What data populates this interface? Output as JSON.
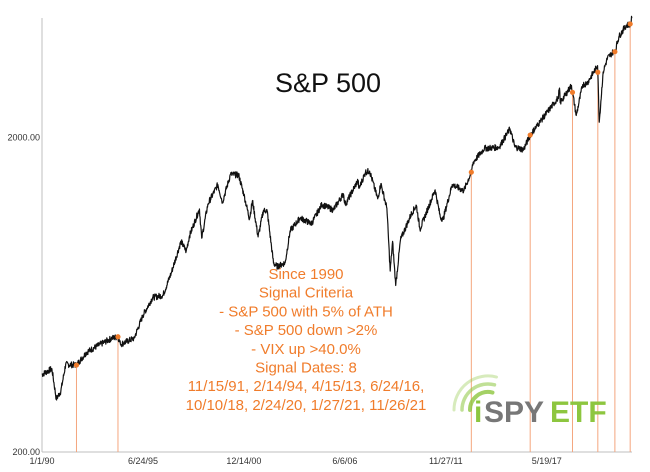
{
  "chart_data": {
    "type": "line",
    "title": "S&P 500",
    "xlabel": "",
    "ylabel": "",
    "scale": "log",
    "ylim": [
      200,
      4800
    ],
    "y_ticks": [
      {
        "value": 2000,
        "label": "2000.00"
      },
      {
        "value": 200,
        "label": "200.00"
      }
    ],
    "x_ticks": [
      "1/1/90",
      "6/24/95",
      "12/14/00",
      "6/6/06",
      "11/27/11",
      "5/19/17"
    ],
    "series": [
      {
        "x": [
          "1990-01-02",
          "1990-07-16",
          "1990-10-11",
          "1991-01-09",
          "1991-04-15",
          "1991-11-15",
          "1992-06-01",
          "1993-01-04",
          "1993-10-15",
          "1994-02-14",
          "1994-04-04",
          "1994-12-30",
          "1995-06-26",
          "1996-01-02",
          "1996-07-24",
          "1997-01-02",
          "1997-07-17",
          "1997-10-27",
          "1998-01-02",
          "1998-07-17",
          "1998-08-31",
          "1998-12-31",
          "1999-07-16",
          "1999-10-15",
          "2000-03-24",
          "2000-09-01",
          "2000-12-14",
          "2001-04-04",
          "2001-06-01",
          "2001-09-21",
          "2002-01-04",
          "2002-03-19",
          "2002-07-23",
          "2002-10-09",
          "2003-03-11",
          "2003-06-17",
          "2004-01-02",
          "2004-08-12",
          "2005-03-07",
          "2005-10-20",
          "2006-05-08",
          "2006-06-13",
          "2007-02-20",
          "2007-03-14",
          "2007-07-19",
          "2007-10-09",
          "2008-03-17",
          "2008-05-19",
          "2008-09-15",
          "2008-11-20",
          "2009-01-06",
          "2009-03-09",
          "2009-06-12",
          "2010-01-19",
          "2010-04-23",
          "2010-07-02",
          "2011-04-29",
          "2011-08-08",
          "2011-10-03",
          "2012-04-02",
          "2012-11-15",
          "2013-04-15",
          "2013-05-21",
          "2013-12-31",
          "2014-10-15",
          "2015-05-21",
          "2015-08-25",
          "2016-02-11",
          "2016-06-24",
          "2016-12-30",
          "2017-12-29",
          "2018-01-26",
          "2018-02-08",
          "2018-09-20",
          "2018-10-10",
          "2018-12-24",
          "2019-04-30",
          "2019-07-26",
          "2020-02-19",
          "2020-02-24",
          "2020-03-23",
          "2020-06-08",
          "2020-09-02",
          "2020-12-31",
          "2021-01-27",
          "2021-04-16",
          "2021-09-02",
          "2021-11-26",
          "2021-12-29"
        ],
        "values": [
          353,
          368,
          295,
          312,
          380,
          378,
          415,
          435,
          460,
          465,
          440,
          460,
          545,
          620,
          630,
          740,
          935,
          870,
          975,
          1185,
          957,
          1229,
          1418,
          1247,
          1527,
          1520,
          1315,
          1103,
          1260,
          966,
          1172,
          1170,
          797,
          777,
          800,
          1010,
          1110,
          1064,
          1225,
          1177,
          1325,
          1223,
          1460,
          1378,
          1553,
          1565,
          1277,
          1426,
          1192,
          752,
          935,
          677,
          946,
          1150,
          1217,
          1022,
          1364,
          1119,
          1099,
          1419,
          1353,
          1552,
          1669,
          1848,
          1862,
          2131,
          1868,
          1829,
          2037,
          2239,
          2674,
          2873,
          2581,
          2930,
          2785,
          2351,
          2946,
          2976,
          3386,
          3226,
          2237,
          3232,
          3580,
          3756,
          3750,
          4185,
          4537,
          4595,
          4793
        ]
      }
    ],
    "signal_dates": [
      "1991-11-15",
      "1994-02-14",
      "2013-04-15",
      "2016-06-24",
      "2018-10-10",
      "2020-02-24",
      "2021-01-27",
      "2021-11-26"
    ],
    "annotation": {
      "lines": [
        "Since 1990",
        "Signal Criteria",
        "- S&P 500 with 5% of ATH",
        "- S&P 500 down >2%",
        "- VIX up >40.0%",
        "Signal Dates: 8",
        "11/15/91, 2/14/94, 4/15/13, 6/24/16,",
        "10/10/18, 2/24/20, 1/27/21, 11/26/21"
      ]
    },
    "logo": {
      "text_i": "i",
      "text_spy": "SPY",
      "text_etf": "ETF"
    },
    "colors": {
      "line": "#111111",
      "signal": "#f4a67e",
      "marker": "#f07c2b",
      "annotation_text": "#f07c2b",
      "logo_green": "#8dc63f",
      "logo_gray": "#777777",
      "axis": "#bfbfbf"
    },
    "grid": false
  }
}
